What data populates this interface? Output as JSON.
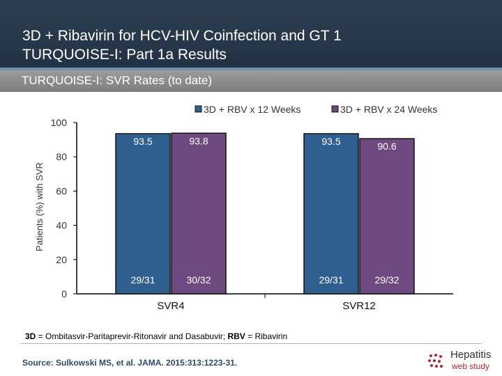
{
  "header": {
    "title_line1": "3D + Ribavirin for HCV-HIV Coinfection and GT 1",
    "title_line2": "TURQUOISE-I: Part 1a Results",
    "subtitle": "TURQUOISE-I: SVR Rates (to date)"
  },
  "chart_data": {
    "type": "bar",
    "categories": [
      "SVR4",
      "SVR12"
    ],
    "series": [
      {
        "name": "3D + RBV x 12 Weeks",
        "values": [
          93.5,
          93.5
        ],
        "fractions": [
          "29/31",
          "29/31"
        ],
        "color": "#2f5f8f"
      },
      {
        "name": "3D + RBV x 24 Weeks",
        "values": [
          93.8,
          90.6
        ],
        "fractions": [
          "30/32",
          "29/32"
        ],
        "color": "#6f4a80"
      }
    ],
    "ylabel": "Patients (%) with SVR",
    "ylim": [
      0,
      100
    ],
    "yticks": [
      0,
      20,
      40,
      60,
      80,
      100
    ],
    "legend_position": "top-right",
    "grid": false
  },
  "footnote": {
    "t1": "3D",
    "t2": " = Ombitasvir-Paritaprevir-Ritonavir and Dasabuvir; ",
    "t3": "RBV",
    "t4": " = Ribavirin"
  },
  "source": "Source: Sulkowski MS, et al. JAMA. 2015:313:1223-31.",
  "logo": {
    "line1": "Hepatitis",
    "line2": "web study"
  }
}
